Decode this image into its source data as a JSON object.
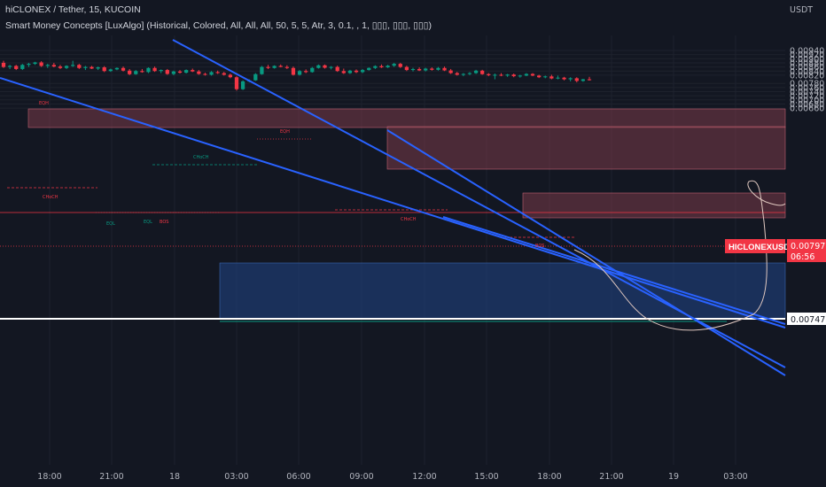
{
  "header": {
    "title": "hiCLONEX / Tether, 15, KUCOIN",
    "indicator": "Smart Money Concepts [LuxAlgo] (Historical, Colored, All, All, All, 50, 5, 5, Atr, 3, 0.1, , 1, ▯▯▯, ▯▯▯, ▯▯▯)"
  },
  "colors": {
    "background": "#131722",
    "bull": "#089981",
    "bear": "#f23645",
    "trendline": "#2962ff",
    "supply_zone": "#7a3b48",
    "demand_zone": "#1e3a6e",
    "grid": "#1e222d"
  },
  "price_axis": {
    "currency": "USDT",
    "ticks": [
      "0.00940",
      "0.00920",
      "0.00900",
      "0.00880",
      "0.00860",
      "0.00840",
      "0.00820",
      "0.00780",
      "0.00760",
      "0.00740",
      "0.00720",
      "0.00700",
      "0.00680",
      "0.00660"
    ],
    "current_symbol": "HICLONEXUSDT",
    "current_price": "0.00797",
    "countdown": "06:56",
    "level_label": "0.00747"
  },
  "chart_data": {
    "type": "candlestick",
    "x_ticks": [
      "18:00",
      "21:00",
      "18",
      "03:00",
      "06:00",
      "09:00",
      "12:00",
      "15:00",
      "18:00",
      "21:00",
      "19",
      "03:00"
    ],
    "ylim": [
      0.0065,
      0.0095
    ],
    "candles": [
      {
        "o": 0.0088,
        "h": 0.0089,
        "l": 0.00855,
        "c": 0.0086
      },
      {
        "o": 0.0086,
        "h": 0.0087,
        "l": 0.0085,
        "c": 0.00865
      },
      {
        "o": 0.00865,
        "h": 0.0087,
        "l": 0.00845,
        "c": 0.0085
      },
      {
        "o": 0.0085,
        "h": 0.00875,
        "l": 0.00845,
        "c": 0.0087
      },
      {
        "o": 0.0087,
        "h": 0.0088,
        "l": 0.0086,
        "c": 0.00875
      },
      {
        "o": 0.00875,
        "h": 0.00885,
        "l": 0.0087,
        "c": 0.00882
      },
      {
        "o": 0.00882,
        "h": 0.00888,
        "l": 0.0086,
        "c": 0.00865
      },
      {
        "o": 0.00865,
        "h": 0.00875,
        "l": 0.00855,
        "c": 0.0087
      },
      {
        "o": 0.0087,
        "h": 0.0088,
        "l": 0.00858,
        "c": 0.00862
      },
      {
        "o": 0.00862,
        "h": 0.0087,
        "l": 0.0085,
        "c": 0.00855
      },
      {
        "o": 0.00855,
        "h": 0.00868,
        "l": 0.0085,
        "c": 0.00865
      },
      {
        "o": 0.00865,
        "h": 0.0089,
        "l": 0.0086,
        "c": 0.0087
      },
      {
        "o": 0.0087,
        "h": 0.00875,
        "l": 0.0085,
        "c": 0.00855
      },
      {
        "o": 0.00855,
        "h": 0.00865,
        "l": 0.00845,
        "c": 0.0086
      },
      {
        "o": 0.0086,
        "h": 0.00865,
        "l": 0.0085,
        "c": 0.00852
      },
      {
        "o": 0.00852,
        "h": 0.00862,
        "l": 0.00845,
        "c": 0.00858
      },
      {
        "o": 0.00858,
        "h": 0.00864,
        "l": 0.00835,
        "c": 0.0084
      },
      {
        "o": 0.0084,
        "h": 0.00852,
        "l": 0.00836,
        "c": 0.00848
      },
      {
        "o": 0.00848,
        "h": 0.00858,
        "l": 0.00844,
        "c": 0.00855
      },
      {
        "o": 0.00855,
        "h": 0.00862,
        "l": 0.00838,
        "c": 0.00842
      },
      {
        "o": 0.00842,
        "h": 0.0085,
        "l": 0.0082,
        "c": 0.00825
      },
      {
        "o": 0.00825,
        "h": 0.00845,
        "l": 0.00822,
        "c": 0.0084
      },
      {
        "o": 0.0084,
        "h": 0.0085,
        "l": 0.00832,
        "c": 0.00835
      },
      {
        "o": 0.00835,
        "h": 0.00858,
        "l": 0.0083,
        "c": 0.00855
      },
      {
        "o": 0.00855,
        "h": 0.00862,
        "l": 0.00836,
        "c": 0.0084
      },
      {
        "o": 0.0084,
        "h": 0.00848,
        "l": 0.0083,
        "c": 0.00845
      },
      {
        "o": 0.00845,
        "h": 0.0085,
        "l": 0.00822,
        "c": 0.00826
      },
      {
        "o": 0.00826,
        "h": 0.00842,
        "l": 0.0082,
        "c": 0.00838
      },
      {
        "o": 0.00838,
        "h": 0.00845,
        "l": 0.00828,
        "c": 0.00832
      },
      {
        "o": 0.00832,
        "h": 0.00848,
        "l": 0.00828,
        "c": 0.00845
      },
      {
        "o": 0.00845,
        "h": 0.00852,
        "l": 0.00835,
        "c": 0.00838
      },
      {
        "o": 0.00838,
        "h": 0.00845,
        "l": 0.00822,
        "c": 0.00826
      },
      {
        "o": 0.00826,
        "h": 0.00832,
        "l": 0.00818,
        "c": 0.00822
      },
      {
        "o": 0.00822,
        "h": 0.0084,
        "l": 0.00818,
        "c": 0.00835
      },
      {
        "o": 0.00835,
        "h": 0.00842,
        "l": 0.00826,
        "c": 0.0083
      },
      {
        "o": 0.0083,
        "h": 0.00836,
        "l": 0.00818,
        "c": 0.00822
      },
      {
        "o": 0.00822,
        "h": 0.00828,
        "l": 0.00805,
        "c": 0.0081
      },
      {
        "o": 0.0081,
        "h": 0.00815,
        "l": 0.00745,
        "c": 0.00752
      },
      {
        "o": 0.00752,
        "h": 0.00795,
        "l": 0.00748,
        "c": 0.0079
      },
      {
        "o": 0.0079,
        "h": 0.008,
        "l": 0.00785,
        "c": 0.00795
      },
      {
        "o": 0.00795,
        "h": 0.0083,
        "l": 0.00792,
        "c": 0.00825
      },
      {
        "o": 0.00825,
        "h": 0.00865,
        "l": 0.00822,
        "c": 0.0086
      },
      {
        "o": 0.0086,
        "h": 0.0087,
        "l": 0.0085,
        "c": 0.00855
      },
      {
        "o": 0.00855,
        "h": 0.00868,
        "l": 0.00852,
        "c": 0.00865
      },
      {
        "o": 0.00865,
        "h": 0.00872,
        "l": 0.00858,
        "c": 0.0086
      },
      {
        "o": 0.0086,
        "h": 0.00868,
        "l": 0.0085,
        "c": 0.00855
      },
      {
        "o": 0.00855,
        "h": 0.00862,
        "l": 0.00818,
        "c": 0.00822
      },
      {
        "o": 0.00822,
        "h": 0.00845,
        "l": 0.00818,
        "c": 0.0084
      },
      {
        "o": 0.0084,
        "h": 0.00848,
        "l": 0.0083,
        "c": 0.00835
      },
      {
        "o": 0.00835,
        "h": 0.0086,
        "l": 0.00832,
        "c": 0.00855
      },
      {
        "o": 0.00855,
        "h": 0.00872,
        "l": 0.00852,
        "c": 0.00868
      },
      {
        "o": 0.00868,
        "h": 0.00872,
        "l": 0.00852,
        "c": 0.00856
      },
      {
        "o": 0.00856,
        "h": 0.00864,
        "l": 0.00848,
        "c": 0.0086
      },
      {
        "o": 0.0086,
        "h": 0.00866,
        "l": 0.00836,
        "c": 0.0084
      },
      {
        "o": 0.0084,
        "h": 0.00852,
        "l": 0.00826,
        "c": 0.0083
      },
      {
        "o": 0.0083,
        "h": 0.00846,
        "l": 0.00826,
        "c": 0.00842
      },
      {
        "o": 0.00842,
        "h": 0.00848,
        "l": 0.0083,
        "c": 0.00835
      },
      {
        "o": 0.00835,
        "h": 0.0085,
        "l": 0.0083,
        "c": 0.00845
      },
      {
        "o": 0.00845,
        "h": 0.00858,
        "l": 0.00842,
        "c": 0.00855
      },
      {
        "o": 0.00855,
        "h": 0.00868,
        "l": 0.0085,
        "c": 0.00864
      },
      {
        "o": 0.00864,
        "h": 0.00872,
        "l": 0.00855,
        "c": 0.00858
      },
      {
        "o": 0.00858,
        "h": 0.0087,
        "l": 0.00855,
        "c": 0.00866
      },
      {
        "o": 0.00866,
        "h": 0.0088,
        "l": 0.0086,
        "c": 0.00875
      },
      {
        "o": 0.00875,
        "h": 0.0088,
        "l": 0.00855,
        "c": 0.0086
      },
      {
        "o": 0.0086,
        "h": 0.00866,
        "l": 0.0084,
        "c": 0.00845
      },
      {
        "o": 0.00845,
        "h": 0.00856,
        "l": 0.00838,
        "c": 0.0085
      },
      {
        "o": 0.0085,
        "h": 0.00858,
        "l": 0.0084,
        "c": 0.00843
      },
      {
        "o": 0.00843,
        "h": 0.00856,
        "l": 0.00838,
        "c": 0.00852
      },
      {
        "o": 0.00852,
        "h": 0.00858,
        "l": 0.00842,
        "c": 0.00846
      },
      {
        "o": 0.00846,
        "h": 0.0086,
        "l": 0.00842,
        "c": 0.00855
      },
      {
        "o": 0.00855,
        "h": 0.00862,
        "l": 0.0084,
        "c": 0.00843
      },
      {
        "o": 0.00843,
        "h": 0.0085,
        "l": 0.00826,
        "c": 0.0083
      },
      {
        "o": 0.0083,
        "h": 0.00836,
        "l": 0.00818,
        "c": 0.00822
      },
      {
        "o": 0.00822,
        "h": 0.0083,
        "l": 0.00815,
        "c": 0.00826
      },
      {
        "o": 0.00826,
        "h": 0.00835,
        "l": 0.0082,
        "c": 0.0083
      },
      {
        "o": 0.0083,
        "h": 0.00846,
        "l": 0.00826,
        "c": 0.00842
      },
      {
        "o": 0.00842,
        "h": 0.00846,
        "l": 0.00822,
        "c": 0.00825
      },
      {
        "o": 0.00825,
        "h": 0.0083,
        "l": 0.00815,
        "c": 0.0082
      },
      {
        "o": 0.0082,
        "h": 0.00828,
        "l": 0.008,
        "c": 0.00822
      },
      {
        "o": 0.00822,
        "h": 0.0083,
        "l": 0.00815,
        "c": 0.00818
      },
      {
        "o": 0.00818,
        "h": 0.00826,
        "l": 0.00812,
        "c": 0.00823
      },
      {
        "o": 0.00823,
        "h": 0.00828,
        "l": 0.0081,
        "c": 0.00815
      },
      {
        "o": 0.00815,
        "h": 0.00822,
        "l": 0.00808,
        "c": 0.00818
      },
      {
        "o": 0.00818,
        "h": 0.0083,
        "l": 0.00815,
        "c": 0.00826
      },
      {
        "o": 0.00826,
        "h": 0.0083,
        "l": 0.00815,
        "c": 0.00818
      },
      {
        "o": 0.00818,
        "h": 0.00822,
        "l": 0.00806,
        "c": 0.0081
      },
      {
        "o": 0.0081,
        "h": 0.00818,
        "l": 0.00805,
        "c": 0.00814
      },
      {
        "o": 0.00814,
        "h": 0.00822,
        "l": 0.008,
        "c": 0.00804
      },
      {
        "o": 0.00804,
        "h": 0.00818,
        "l": 0.008,
        "c": 0.00808
      },
      {
        "o": 0.00808,
        "h": 0.00812,
        "l": 0.00795,
        "c": 0.008
      },
      {
        "o": 0.008,
        "h": 0.0081,
        "l": 0.0079,
        "c": 0.00805
      },
      {
        "o": 0.00805,
        "h": 0.0081,
        "l": 0.00785,
        "c": 0.00792
      },
      {
        "o": 0.00792,
        "h": 0.00802,
        "l": 0.00788,
        "c": 0.008
      },
      {
        "o": 0.008,
        "h": 0.00812,
        "l": 0.00794,
        "c": 0.00797
      }
    ]
  },
  "annotations": {
    "eqh": "EQH",
    "choch": "CHoCH",
    "eql": "EQL",
    "bos": "BOS"
  }
}
